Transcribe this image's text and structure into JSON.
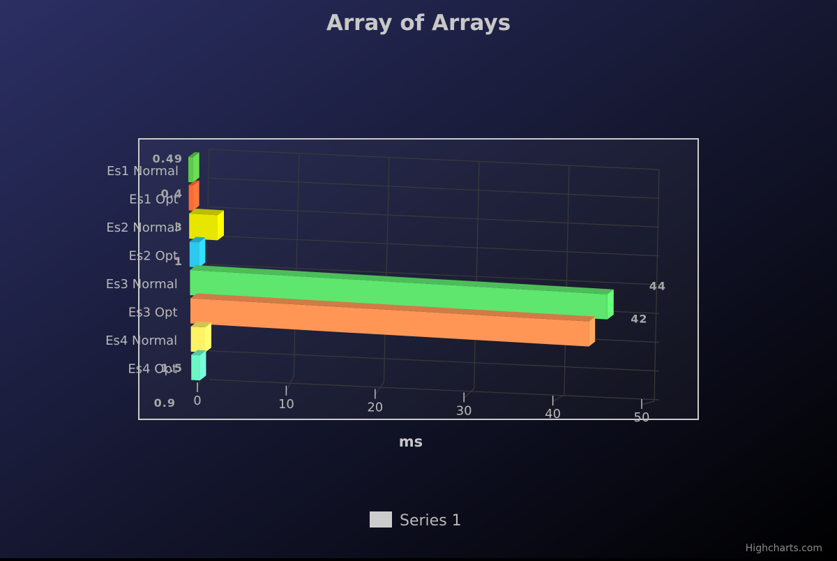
{
  "chart_data": {
    "type": "bar",
    "orientation": "horizontal",
    "title": "Array of Arrays",
    "xlabel": "ms",
    "categories": [
      "Es1 Normal",
      "Es1 Opt",
      "Es2 Normal",
      "Es2 Opt",
      "Es3 Normal",
      "Es3 Opt",
      "Es4 Normal",
      "Es4 Opt"
    ],
    "series": [
      {
        "name": "Series 1",
        "values": [
          0.49,
          0.4,
          3,
          1,
          44,
          42,
          1.5,
          0.9
        ],
        "data_labels": [
          "0.49",
          "0.4",
          "3",
          "1",
          "44",
          "42",
          "1.5",
          "0.9"
        ],
        "colors": [
          "#5ec94a",
          "#ff6a33",
          "#e6e600",
          "#2ec8ef",
          "#5ee66e",
          "#ff9655",
          "#fff263",
          "#6af9c4"
        ]
      }
    ],
    "value_axis": {
      "min": 0,
      "max": 50,
      "tick_labels": [
        "0",
        "10",
        "20",
        "30",
        "40",
        "50"
      ]
    },
    "grid": true,
    "legend_position": "bottom-center",
    "style": "3d"
  },
  "credits": "Highcharts.com",
  "colors": {
    "background_start": "#2b2f63",
    "background_end": "#000000",
    "plot_border": "#cccccc",
    "grid_line": "#3a3a3a",
    "label_text": "#b8b8b8",
    "title_text": "#c8c8c8",
    "data_label_text": "#a6a6a6",
    "legend_symbol": "#cccccc"
  }
}
